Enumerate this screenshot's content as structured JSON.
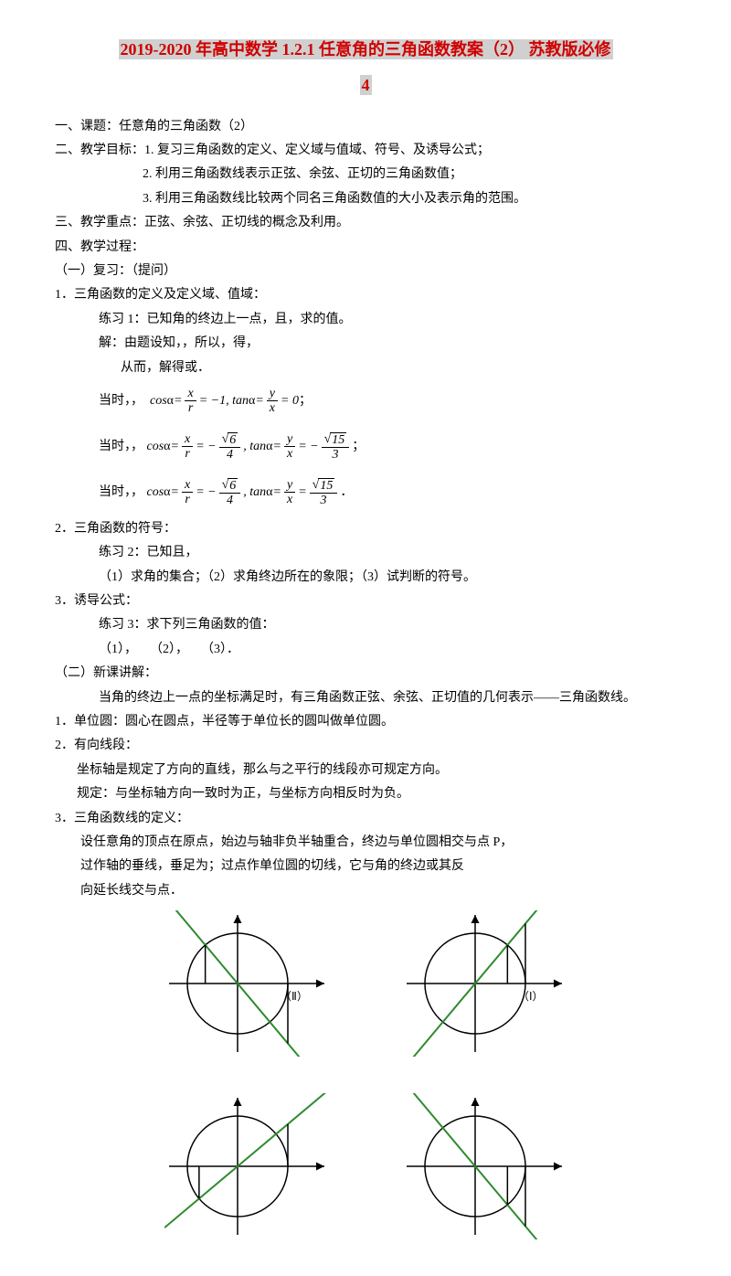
{
  "title_main": "2019-2020 年高中数学 1.2.1 任意角的三角函数教案（2） 苏教版必修",
  "title_sub": "4",
  "s1": {
    "h": "一、课题：任意角的三角函数（2）",
    "g": "二、教学目标：1. 复习三角函数的定义、定义域与值域、符号、及诱导公式；",
    "g2": "2. 利用三角函数线表示正弦、余弦、正切的三角函数值；",
    "g3": "3. 利用三角函数线比较两个同名三角函数值的大小及表示角的范围。",
    "r": "三、教学重点：正弦、余弦、正切线的概念及利用。",
    "p": "四、教学过程：",
    "c1": "（一）复习：（提问）",
    "c1_1": "1．三角函数的定义及定义域、值域：",
    "c1_1a": "练习 1：已知角的终边上一点，且，求的值。",
    "c1_1b": "解：由题设知，，所以，得，",
    "c1_1c": "从而，解得或．",
    "m1_pre": "当时，，",
    "m1_post": "；",
    "m2_pre": "当时，，",
    "m2_post": "；",
    "m3_pre": "当时，，",
    "m3_post": "．",
    "c1_2": "2．三角函数的符号：",
    "c1_2a": "练习 2：已知且，",
    "c1_2b": "（1）求角的集合；（2）求角终边所在的象限；（3）试判断的符号。",
    "c1_3": "3．诱导公式：",
    "c1_3a": "练习 3：求下列三角函数的值：",
    "c1_3b": "（1），　　（2），　　（3）．",
    "c2": "（二）新课讲解：",
    "c2_a": "当角的终边上一点的坐标满足时，有三角函数正弦、余弦、正切值的几何表示——三角函数线。",
    "c2_1": "1．单位圆：圆心在圆点，半径等于单位长的圆叫做单位圆。",
    "c2_2": "2．有向线段：",
    "c2_2a": "坐标轴是规定了方向的直线，那么与之平行的线段亦可规定方向。",
    "c2_2b": "规定：与坐标轴方向一致时为正，与坐标方向相反时为负。",
    "c2_3": "3．三角函数线的定义：",
    "c2_3a": "设任意角的顶点在原点，始边与轴非负半轴重合，终边与单位圆相交与点 P，",
    "c2_3b": "过作轴的垂线，垂足为；过点作单位圆的切线，它与角的终边或其反",
    "c2_3c": "向延长线交与点．"
  },
  "diagrams": {
    "stroke": "#000000",
    "green": "#2e8b2e",
    "label_II": "（Ⅱ）",
    "label_I": "（Ⅰ）",
    "circles": [
      {
        "angle_deg": 130,
        "dashed_opposite": true,
        "label": "（Ⅱ）"
      },
      {
        "angle_deg": 50,
        "dashed_opposite": false,
        "label": "（Ⅰ）"
      },
      {
        "angle_deg": 220,
        "dashed_opposite": false,
        "label": ""
      },
      {
        "angle_deg": 310,
        "dashed_opposite": false,
        "label": ""
      }
    ]
  }
}
